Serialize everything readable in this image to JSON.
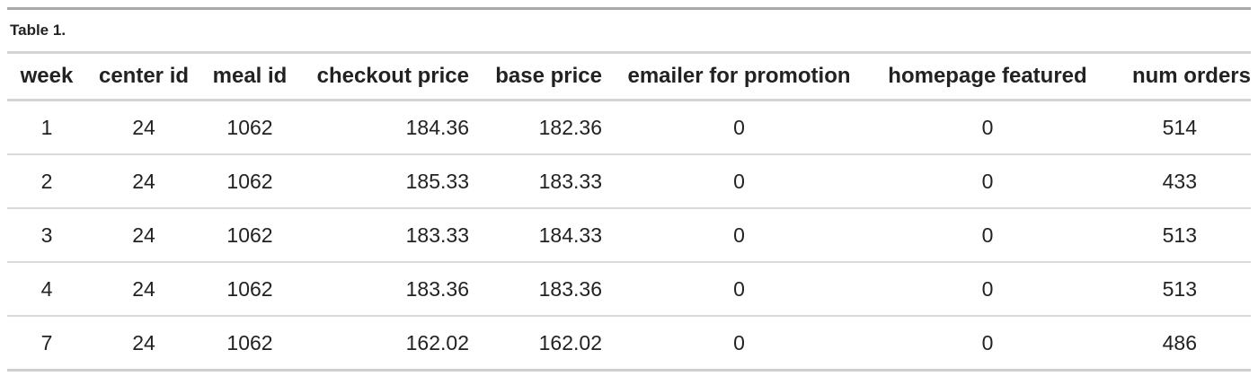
{
  "caption": "Table 1.",
  "columns": [
    "week",
    "center id",
    "meal id",
    "checkout price",
    "base price",
    "emailer for promotion",
    "homepage featured",
    "num orders"
  ],
  "rows": [
    [
      "1",
      "24",
      "1062",
      "184.36",
      "182.36",
      "0",
      "0",
      "514"
    ],
    [
      "2",
      "24",
      "1062",
      "185.33",
      "183.33",
      "0",
      "0",
      "433"
    ],
    [
      "3",
      "24",
      "1062",
      "183.33",
      "184.33",
      "0",
      "0",
      "513"
    ],
    [
      "4",
      "24",
      "1062",
      "183.36",
      "183.36",
      "0",
      "0",
      "513"
    ],
    [
      "7",
      "24",
      "1062",
      "162.02",
      "162.02",
      "0",
      "0",
      "486"
    ]
  ]
}
